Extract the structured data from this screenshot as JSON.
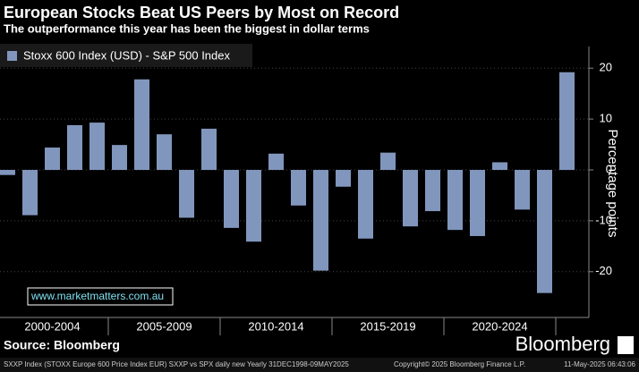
{
  "chart_data": {
    "type": "bar",
    "title": "European Stocks Beat US Peers by Most on Record",
    "subtitle": "The outperformance this year has been the biggest in dollar terms",
    "series": [
      {
        "name": "Stoxx 600 Index (USD) - S&P 500 Index",
        "color": "#8196bc",
        "values": [
          -1,
          -8.9,
          4.4,
          8.8,
          9.3,
          4.9,
          17.8,
          7.0,
          -9.4,
          8.1,
          -11.4,
          -14.1,
          3.2,
          -7.0,
          -19.8,
          -3.3,
          -13.5,
          3.4,
          -11.1,
          -8.1,
          -11.8,
          -13.0,
          1.5,
          -7.8,
          -24.2,
          19.2
        ]
      }
    ],
    "category_groups": [
      "2000-2004",
      "2005-2009",
      "2010-2014",
      "2015-2019",
      "2020-2024"
    ],
    "ylabel": "Percentage points",
    "ylim": [
      -29,
      22.5
    ],
    "yticks": [
      20,
      10,
      0,
      -10,
      -20
    ],
    "grid": true,
    "watermark": "www.marketmatters.com.au",
    "source": "Source: Bloomberg",
    "brand": "Bloomberg",
    "footer": "SXXP Index (STOXX Europe 600 Price Index EUR) SXXP vs SPX daily new  Yearly 31DEC1998-09MAY2025",
    "copyright": "Copyright© 2025 Bloomberg Finance L.P.",
    "timestamp": "11-May-2025 06:43:06"
  }
}
